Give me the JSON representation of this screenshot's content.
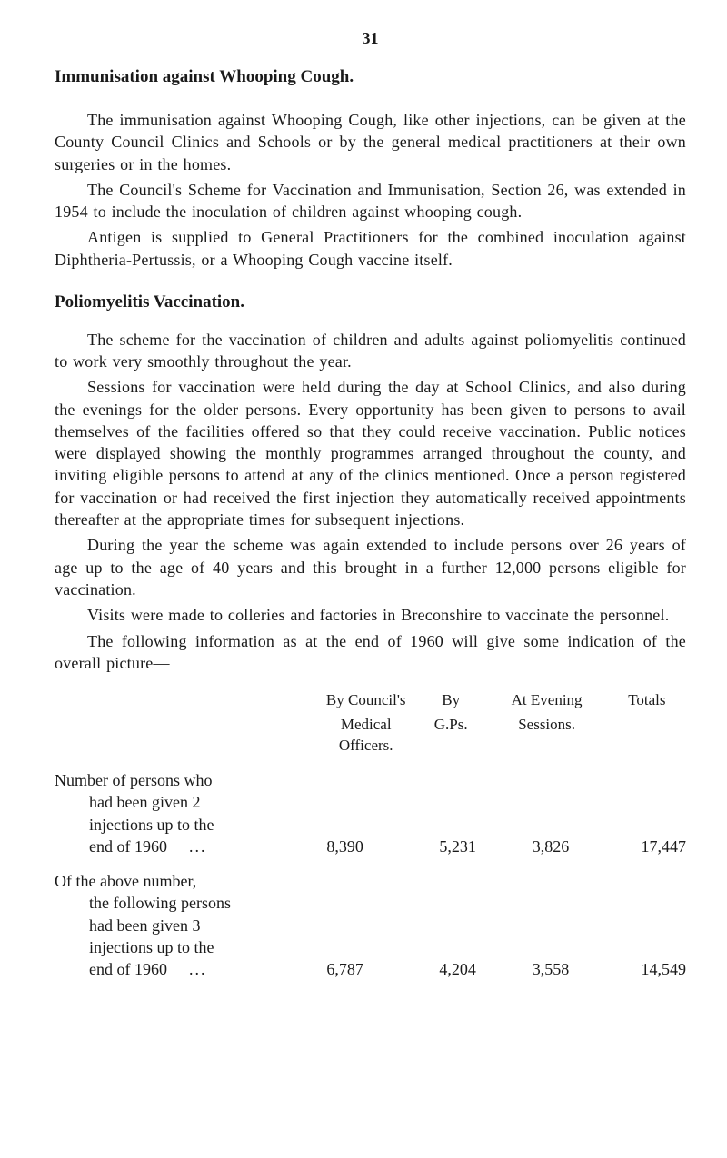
{
  "pageNumber": "31",
  "title1": "Immunisation against Whooping Cough.",
  "p1": "The immunisation against Whooping Cough, like other injections, can be given at the County Council Clinics and Schools or by the general medical practitioners at their own surgeries or in the homes.",
  "p2": "The Council's Scheme for Vaccination and Immunisation, Section 26, was extended in 1954 to include the inoculation of children against whooping cough.",
  "p3": "Antigen is supplied to General Practitioners for the combined inoculation against Diphtheria-Pertussis, or a Whooping Cough vaccine itself.",
  "title2": "Poliomyelitis Vaccination.",
  "p4": "The scheme for the vaccination of children and adults against poliomyelitis continued to work very smoothly throughout the year.",
  "p5": "Sessions for vaccination were held during the day at School Clinics, and also during the evenings for the older persons. Every opportunity has been given to persons to avail themselves of the facilities offered so that they could receive vaccination. Public notices were displayed showing the monthly programmes arranged throughout the county, and inviting eligible persons to attend at any of the clinics mentioned. Once a person registered for vaccination or had received the first injection they automatically received appointments thereafter at the appropriate times for subsequent injections.",
  "p6": "During the year the scheme was again extended to include persons over 26 years of age up to the age of 40 years and this brought in a further 12,000 persons eligible for vaccination.",
  "p7": "Visits were made to colleries and factories in Breconshire to vaccinate the personnel.",
  "p8": "The following information as at the end of 1960 will give some indication of the overall picture—",
  "table": {
    "headers": {
      "col2a": "By Council's",
      "col2b": "Medical Officers.",
      "col3a": "By",
      "col3b": "G.Ps.",
      "col4a": "At Evening",
      "col4b": "Sessions.",
      "col5a": "Totals"
    },
    "rows": [
      {
        "desc_lines": [
          "Number of persons who",
          "had been given 2",
          "injections up to the",
          "end of 1960"
        ],
        "v2": "8,390",
        "v3": "5,231",
        "v4": "3,826",
        "v5": "17,447"
      },
      {
        "desc_lines": [
          "Of the above number,",
          "the following persons",
          "had been given 3",
          "injections up to the",
          "end of 1960"
        ],
        "v2": "6,787",
        "v3": "4,204",
        "v4": "3,558",
        "v5": "14,549"
      }
    ]
  }
}
